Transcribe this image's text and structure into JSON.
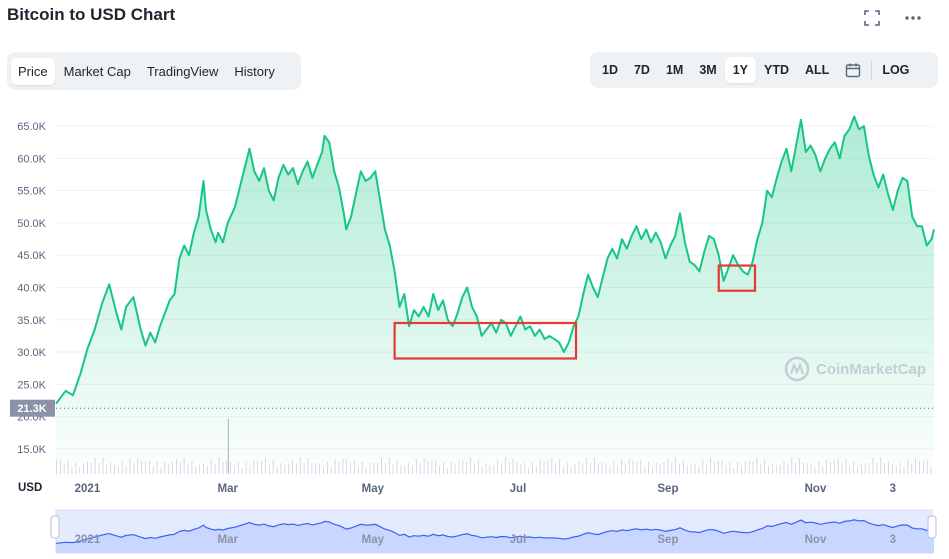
{
  "title": "Bitcoin to USD Chart",
  "icons": {
    "expand": "expand-icon",
    "more": "more-icon"
  },
  "tabs": [
    "Price",
    "Market Cap",
    "TradingView",
    "History"
  ],
  "active_tab": "Price",
  "ranges": [
    "1D",
    "7D",
    "1M",
    "3M",
    "1Y",
    "YTD",
    "ALL"
  ],
  "active_range": "1Y",
  "log_label": "LOG",
  "currency": "USD",
  "current_price_label": "21.3K",
  "watermark": "CoinMarketCap",
  "colors": {
    "line": "#16c784",
    "fill": "#16c784",
    "highlight": "#e53935",
    "volume": "#cfd6e4",
    "navigator_line": "#3861fb"
  },
  "chart_data": {
    "type": "area",
    "title": "Bitcoin to USD Chart",
    "xlabel": "",
    "ylabel": "",
    "ylim": [
      12500,
      67500
    ],
    "x_range": [
      0,
      363
    ],
    "y_ticks": [
      "15.0K",
      "20.0K",
      "25.0K",
      "30.0K",
      "35.0K",
      "40.0K",
      "45.0K",
      "50.0K",
      "55.0K",
      "60.0K",
      "65.0K"
    ],
    "y_tick_values": [
      15000,
      20000,
      25000,
      30000,
      35000,
      40000,
      45000,
      50000,
      55000,
      60000,
      65000
    ],
    "x_ticks": [
      {
        "label": "2021",
        "day": 13
      },
      {
        "label": "Mar",
        "day": 71
      },
      {
        "label": "May",
        "day": 131
      },
      {
        "label": "Jul",
        "day": 191
      },
      {
        "label": "Sep",
        "day": 253
      },
      {
        "label": "Nov",
        "day": 314
      },
      {
        "label": "3",
        "day": 346
      }
    ],
    "series": [
      {
        "values": [
          [
            0,
            22000
          ],
          [
            4,
            24000
          ],
          [
            7,
            23300
          ],
          [
            10,
            26500
          ],
          [
            13,
            30500
          ],
          [
            16,
            33500
          ],
          [
            19,
            37500
          ],
          [
            22,
            40500
          ],
          [
            25,
            36000
          ],
          [
            27,
            33500
          ],
          [
            29,
            37000
          ],
          [
            32,
            38500
          ],
          [
            35,
            33500
          ],
          [
            37,
            31000
          ],
          [
            39,
            33000
          ],
          [
            41,
            31500
          ],
          [
            43,
            34000
          ],
          [
            45,
            36000
          ],
          [
            47,
            38000
          ],
          [
            49,
            39000
          ],
          [
            51,
            44500
          ],
          [
            53,
            46500
          ],
          [
            55,
            45000
          ],
          [
            57,
            48500
          ],
          [
            59,
            51000
          ],
          [
            61,
            56500
          ],
          [
            62,
            52000
          ],
          [
            64,
            49000
          ],
          [
            66,
            47000
          ],
          [
            67,
            48500
          ],
          [
            69,
            47000
          ],
          [
            71,
            50000
          ],
          [
            74,
            52500
          ],
          [
            77,
            57000
          ],
          [
            80,
            61500
          ],
          [
            82,
            58000
          ],
          [
            84,
            56500
          ],
          [
            86,
            58500
          ],
          [
            88,
            55000
          ],
          [
            90,
            53500
          ],
          [
            92,
            57000
          ],
          [
            94,
            59000
          ],
          [
            96,
            57500
          ],
          [
            98,
            58500
          ],
          [
            100,
            56000
          ],
          [
            102,
            58000
          ],
          [
            104,
            59500
          ],
          [
            106,
            57000
          ],
          [
            108,
            59000
          ],
          [
            110,
            61000
          ],
          [
            111,
            63500
          ],
          [
            113,
            62500
          ],
          [
            115,
            58000
          ],
          [
            117,
            55500
          ],
          [
            119,
            51500
          ],
          [
            120,
            49000
          ],
          [
            122,
            51000
          ],
          [
            124,
            54500
          ],
          [
            126,
            58000
          ],
          [
            128,
            56500
          ],
          [
            130,
            57000
          ],
          [
            132,
            58000
          ],
          [
            134,
            53500
          ],
          [
            136,
            49000
          ],
          [
            138,
            46500
          ],
          [
            140,
            42500
          ],
          [
            142,
            37000
          ],
          [
            144,
            39000
          ],
          [
            146,
            34000
          ],
          [
            148,
            36500
          ],
          [
            150,
            35500
          ],
          [
            152,
            37000
          ],
          [
            154,
            35500
          ],
          [
            156,
            39000
          ],
          [
            158,
            36500
          ],
          [
            160,
            38000
          ],
          [
            162,
            35000
          ],
          [
            164,
            34000
          ],
          [
            166,
            36000
          ],
          [
            168,
            38500
          ],
          [
            170,
            40000
          ],
          [
            172,
            37000
          ],
          [
            174,
            35500
          ],
          [
            176,
            32500
          ],
          [
            178,
            33500
          ],
          [
            180,
            34500
          ],
          [
            182,
            33000
          ],
          [
            184,
            35000
          ],
          [
            186,
            34500
          ],
          [
            188,
            32500
          ],
          [
            190,
            34000
          ],
          [
            192,
            35500
          ],
          [
            194,
            33500
          ],
          [
            196,
            34000
          ],
          [
            198,
            32500
          ],
          [
            200,
            33500
          ],
          [
            202,
            32000
          ],
          [
            204,
            32500
          ],
          [
            206,
            32000
          ],
          [
            208,
            31500
          ],
          [
            210,
            30000
          ],
          [
            212,
            31500
          ],
          [
            214,
            34000
          ],
          [
            216,
            35500
          ],
          [
            218,
            39000
          ],
          [
            220,
            42000
          ],
          [
            222,
            40000
          ],
          [
            224,
            38500
          ],
          [
            226,
            41500
          ],
          [
            228,
            44500
          ],
          [
            230,
            46000
          ],
          [
            232,
            44500
          ],
          [
            234,
            47500
          ],
          [
            236,
            46000
          ],
          [
            238,
            48000
          ],
          [
            240,
            49500
          ],
          [
            242,
            47500
          ],
          [
            244,
            49000
          ],
          [
            246,
            47000
          ],
          [
            248,
            48500
          ],
          [
            250,
            47000
          ],
          [
            252,
            44500
          ],
          [
            254,
            46500
          ],
          [
            256,
            48000
          ],
          [
            258,
            51500
          ],
          [
            260,
            47000
          ],
          [
            262,
            44000
          ],
          [
            264,
            43500
          ],
          [
            266,
            42500
          ],
          [
            268,
            45500
          ],
          [
            270,
            48000
          ],
          [
            272,
            47500
          ],
          [
            274,
            45000
          ],
          [
            276,
            41000
          ],
          [
            278,
            43000
          ],
          [
            280,
            45000
          ],
          [
            282,
            43500
          ],
          [
            284,
            42500
          ],
          [
            286,
            42000
          ],
          [
            288,
            44000
          ],
          [
            290,
            47500
          ],
          [
            292,
            50000
          ],
          [
            294,
            55000
          ],
          [
            296,
            54000
          ],
          [
            298,
            57000
          ],
          [
            300,
            59500
          ],
          [
            302,
            61500
          ],
          [
            304,
            58000
          ],
          [
            306,
            62000
          ],
          [
            308,
            66000
          ],
          [
            310,
            61000
          ],
          [
            312,
            62000
          ],
          [
            314,
            60500
          ],
          [
            316,
            58000
          ],
          [
            318,
            60000
          ],
          [
            320,
            61500
          ],
          [
            322,
            62500
          ],
          [
            324,
            60000
          ],
          [
            326,
            63500
          ],
          [
            328,
            64500
          ],
          [
            330,
            66500
          ],
          [
            332,
            64500
          ],
          [
            334,
            65000
          ],
          [
            336,
            60500
          ],
          [
            338,
            57500
          ],
          [
            340,
            55500
          ],
          [
            342,
            57500
          ],
          [
            344,
            54500
          ],
          [
            346,
            52000
          ],
          [
            348,
            55000
          ],
          [
            350,
            57000
          ],
          [
            352,
            56500
          ],
          [
            354,
            51000
          ],
          [
            356,
            49500
          ],
          [
            358,
            49500
          ],
          [
            360,
            46500
          ],
          [
            362,
            47500
          ],
          [
            363,
            49000
          ]
        ]
      }
    ],
    "volume_spike_day": 71,
    "highlights": [
      {
        "x0": 140,
        "x1": 215,
        "y0": 29000,
        "y1": 34500
      },
      {
        "x0": 274,
        "x1": 289,
        "y0": 39500,
        "y1": 43400
      }
    ]
  }
}
